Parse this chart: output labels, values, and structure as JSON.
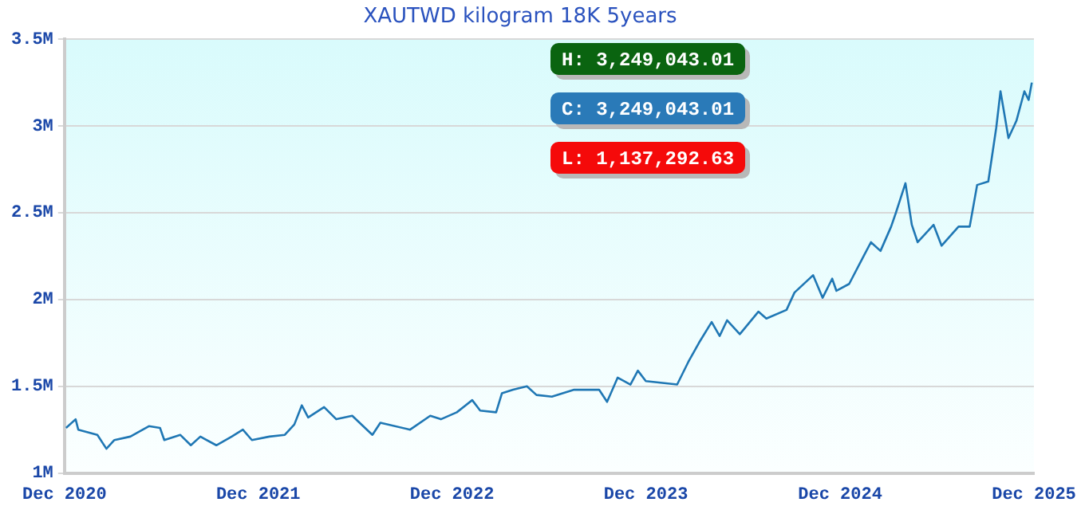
{
  "chart_data": {
    "type": "line",
    "title": "XAUTWD kilogram 18K 5years",
    "x": [
      "2020-12-04",
      "2020-12-22",
      "2020-12-27",
      "2021-02-01",
      "2021-02-18",
      "2021-03-05",
      "2021-04-04",
      "2021-05-09",
      "2021-05-30",
      "2021-06-07",
      "2021-07-07",
      "2021-07-27",
      "2021-08-14",
      "2021-09-13",
      "2021-10-12",
      "2021-11-02",
      "2021-11-19",
      "2021-12-22",
      "2022-01-20",
      "2022-02-07",
      "2022-02-21",
      "2022-03-05",
      "2022-04-04",
      "2022-04-27",
      "2022-05-27",
      "2022-07-04",
      "2022-07-19",
      "2022-09-13",
      "2022-10-21",
      "2022-11-10",
      "2022-12-10",
      "2023-01-08",
      "2023-01-23",
      "2023-02-22",
      "2023-03-05",
      "2023-03-26",
      "2023-04-21",
      "2023-05-09",
      "2023-06-07",
      "2023-07-19",
      "2023-09-04",
      "2023-09-19",
      "2023-10-09",
      "2023-11-02",
      "2023-11-16",
      "2023-12-01",
      "2024-01-29",
      "2024-02-19",
      "2024-03-10",
      "2024-04-03",
      "2024-04-18",
      "2024-05-02",
      "2024-05-26",
      "2024-06-30",
      "2024-07-15",
      "2024-08-22",
      "2024-09-06",
      "2024-10-11",
      "2024-10-29",
      "2024-11-16",
      "2024-11-24",
      "2024-12-18",
      "2025-01-16",
      "2025-01-28",
      "2025-02-15",
      "2025-03-07",
      "2025-03-16",
      "2025-04-03",
      "2025-04-15",
      "2025-04-26",
      "2025-05-26",
      "2025-06-10",
      "2025-07-12",
      "2025-08-02",
      "2025-08-16",
      "2025-09-06",
      "2025-09-21",
      "2025-09-29",
      "2025-10-14",
      "2025-10-29",
      "2025-11-13",
      "2025-11-21",
      "2025-11-27"
    ],
    "series": [
      {
        "color": "#1f77b4",
        "values": [
          1.26,
          1.31,
          1.25,
          1.22,
          1.14,
          1.19,
          1.21,
          1.27,
          1.26,
          1.19,
          1.22,
          1.16,
          1.21,
          1.16,
          1.21,
          1.25,
          1.19,
          1.21,
          1.22,
          1.28,
          1.39,
          1.32,
          1.38,
          1.31,
          1.33,
          1.22,
          1.29,
          1.25,
          1.33,
          1.31,
          1.35,
          1.42,
          1.36,
          1.35,
          1.46,
          1.48,
          1.5,
          1.45,
          1.44,
          1.48,
          1.48,
          1.41,
          1.55,
          1.51,
          1.59,
          1.53,
          1.51,
          1.64,
          1.75,
          1.87,
          1.79,
          1.88,
          1.8,
          1.93,
          1.89,
          1.94,
          2.04,
          2.14,
          2.01,
          2.12,
          2.05,
          2.09,
          2.26,
          2.33,
          2.28,
          2.42,
          2.5,
          2.67,
          2.43,
          2.33,
          2.43,
          2.31,
          2.42,
          2.42,
          2.66,
          2.68,
          2.99,
          3.2,
          2.93,
          3.03,
          3.2,
          3.15,
          3.25
        ]
      }
    ],
    "xlim": [
      "2020-12-01",
      "2025-12-01"
    ],
    "xticks": [
      {
        "value": "2020-12-01",
        "label": "Dec 2020"
      },
      {
        "value": "2021-12-01",
        "label": "Dec 2021"
      },
      {
        "value": "2022-12-01",
        "label": "Dec 2022"
      },
      {
        "value": "2023-12-01",
        "label": "Dec 2023"
      },
      {
        "value": "2024-12-01",
        "label": "Dec 2024"
      },
      {
        "value": "2025-12-01",
        "label": "Dec 2025"
      }
    ],
    "ylim": [
      1,
      3.5
    ],
    "yticks": [
      {
        "value": 1,
        "label": "1M"
      },
      {
        "value": 1.5,
        "label": "1.5M"
      },
      {
        "value": 2,
        "label": "2M"
      },
      {
        "value": 2.5,
        "label": "2.5M"
      },
      {
        "value": 3,
        "label": "3M"
      },
      {
        "value": 3.5,
        "label": "3.5M"
      }
    ],
    "annotations": [
      "H: 3,249,043.01",
      "C: 3,249,043.01",
      "L: 1,137,292.63"
    ],
    "grid": "y",
    "legend": false,
    "marker": "none",
    "line_style": "solid"
  }
}
